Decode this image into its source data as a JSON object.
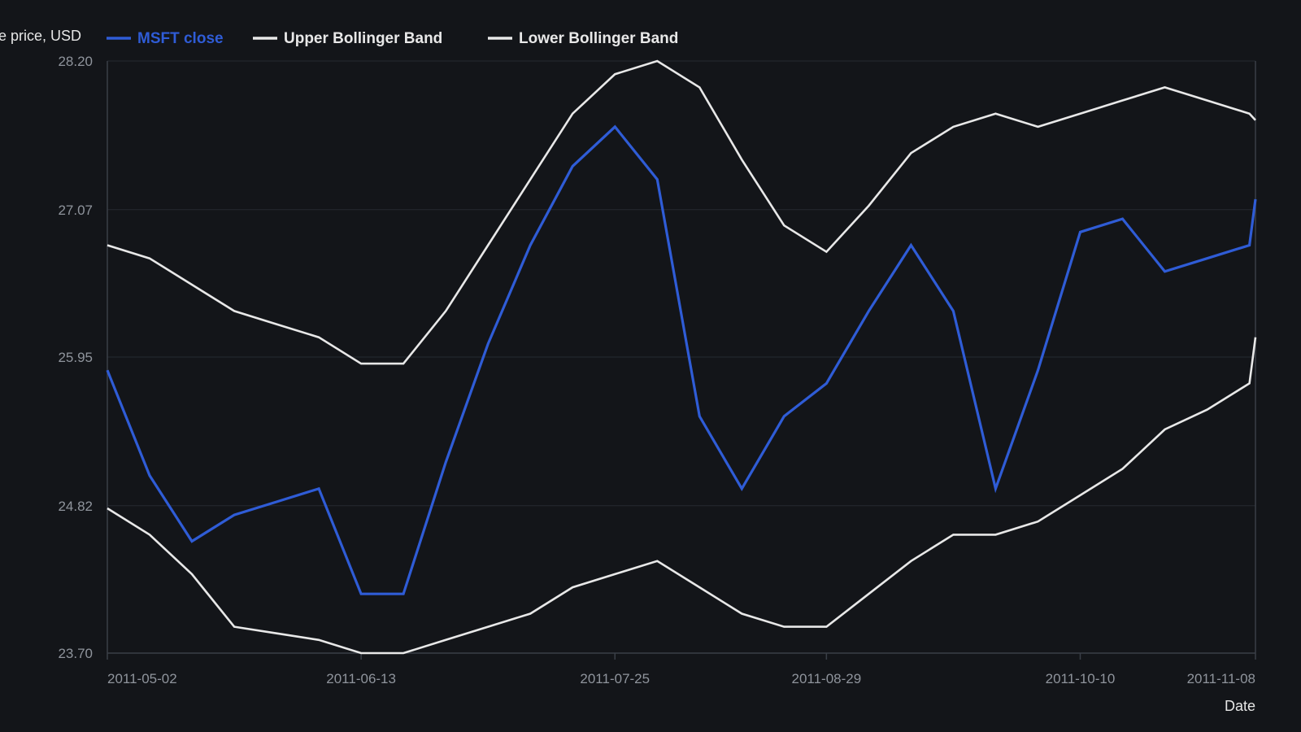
{
  "chart_data": {
    "type": "line",
    "title": "",
    "ylabel": "Share price, USD",
    "xlabel": "Date",
    "ylim": [
      23.7,
      28.2
    ],
    "y_ticks": [
      "23.70",
      "24.82",
      "25.95",
      "27.07",
      "28.20"
    ],
    "x_tick_labels": [
      "2011-05-02",
      "2011-06-13",
      "2011-07-25",
      "2011-08-29",
      "2011-10-10",
      "2011-11-08"
    ],
    "grid": "horizontal",
    "legend_position": "top-left",
    "x": [
      "2011-05-02",
      "2011-05-09",
      "2011-05-16",
      "2011-05-23",
      "2011-05-30",
      "2011-06-06",
      "2011-06-13",
      "2011-06-20",
      "2011-06-27",
      "2011-07-04",
      "2011-07-11",
      "2011-07-18",
      "2011-07-25",
      "2011-08-01",
      "2011-08-08",
      "2011-08-15",
      "2011-08-22",
      "2011-08-29",
      "2011-09-05",
      "2011-09-12",
      "2011-09-19",
      "2011-09-26",
      "2011-10-03",
      "2011-10-10",
      "2011-10-17",
      "2011-10-24",
      "2011-10-31",
      "2011-11-07",
      "2011-11-08"
    ],
    "series": [
      {
        "name": "MSFT close",
        "color": "#2f5cd6",
        "values": [
          25.85,
          25.05,
          24.55,
          24.75,
          24.85,
          24.95,
          24.15,
          24.15,
          25.15,
          26.05,
          26.8,
          27.4,
          27.7,
          27.3,
          25.5,
          24.95,
          25.5,
          25.75,
          26.3,
          26.8,
          26.3,
          24.95,
          25.85,
          26.9,
          27.0,
          26.6,
          26.7,
          26.8,
          27.15
        ]
      },
      {
        "name": "Upper Bollinger Band",
        "color": "#e8e8e8",
        "values": [
          26.8,
          26.7,
          26.5,
          26.3,
          26.2,
          26.1,
          25.9,
          25.9,
          26.3,
          26.8,
          27.3,
          27.8,
          28.1,
          28.2,
          28.0,
          27.45,
          26.95,
          26.75,
          27.1,
          27.5,
          27.7,
          27.8,
          27.7,
          27.8,
          27.9,
          28.0,
          27.9,
          27.8,
          27.75
        ]
      },
      {
        "name": "Lower Bollinger Band",
        "color": "#e8e8e8",
        "values": [
          24.8,
          24.6,
          24.3,
          23.9,
          23.85,
          23.8,
          23.7,
          23.7,
          23.8,
          23.9,
          24.0,
          24.2,
          24.3,
          24.4,
          24.2,
          24.0,
          23.9,
          23.9,
          24.15,
          24.4,
          24.6,
          24.6,
          24.7,
          24.9,
          25.1,
          25.4,
          25.55,
          25.75,
          26.1
        ]
      }
    ]
  }
}
